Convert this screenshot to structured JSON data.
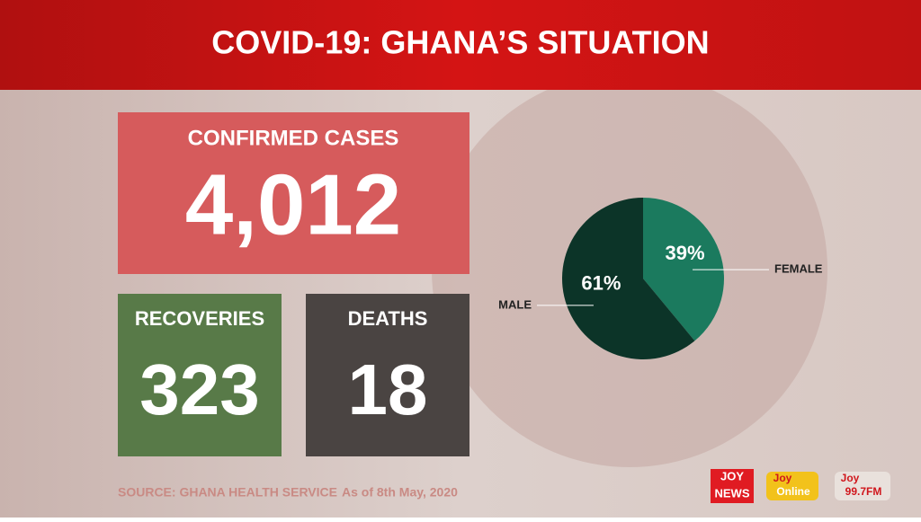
{
  "header": {
    "title": "COVID-19: GHANA’S SITUATION"
  },
  "cards": {
    "confirmed": {
      "label": "CONFIRMED CASES",
      "value": "4,012"
    },
    "recoveries": {
      "label": "RECOVERIES",
      "value": "323"
    },
    "deaths": {
      "label": "DEATHS",
      "value": "18"
    }
  },
  "chart_data": {
    "type": "pie",
    "categories": [
      "FEMALE",
      "MALE"
    ],
    "values": [
      39,
      61
    ],
    "value_labels": [
      "39%",
      "61%"
    ],
    "colors": [
      "#1b7a5e",
      "#0c3428"
    ]
  },
  "footer": {
    "source": "SOURCE: GHANA HEALTH SERVICE",
    "date": "As of 8th May, 2020"
  },
  "logos": {
    "joy_news": [
      "JOY",
      "NEWS"
    ],
    "joy_online": [
      "Joy",
      "Online"
    ],
    "joy_fm": [
      "Joy",
      "99.7FM"
    ]
  }
}
